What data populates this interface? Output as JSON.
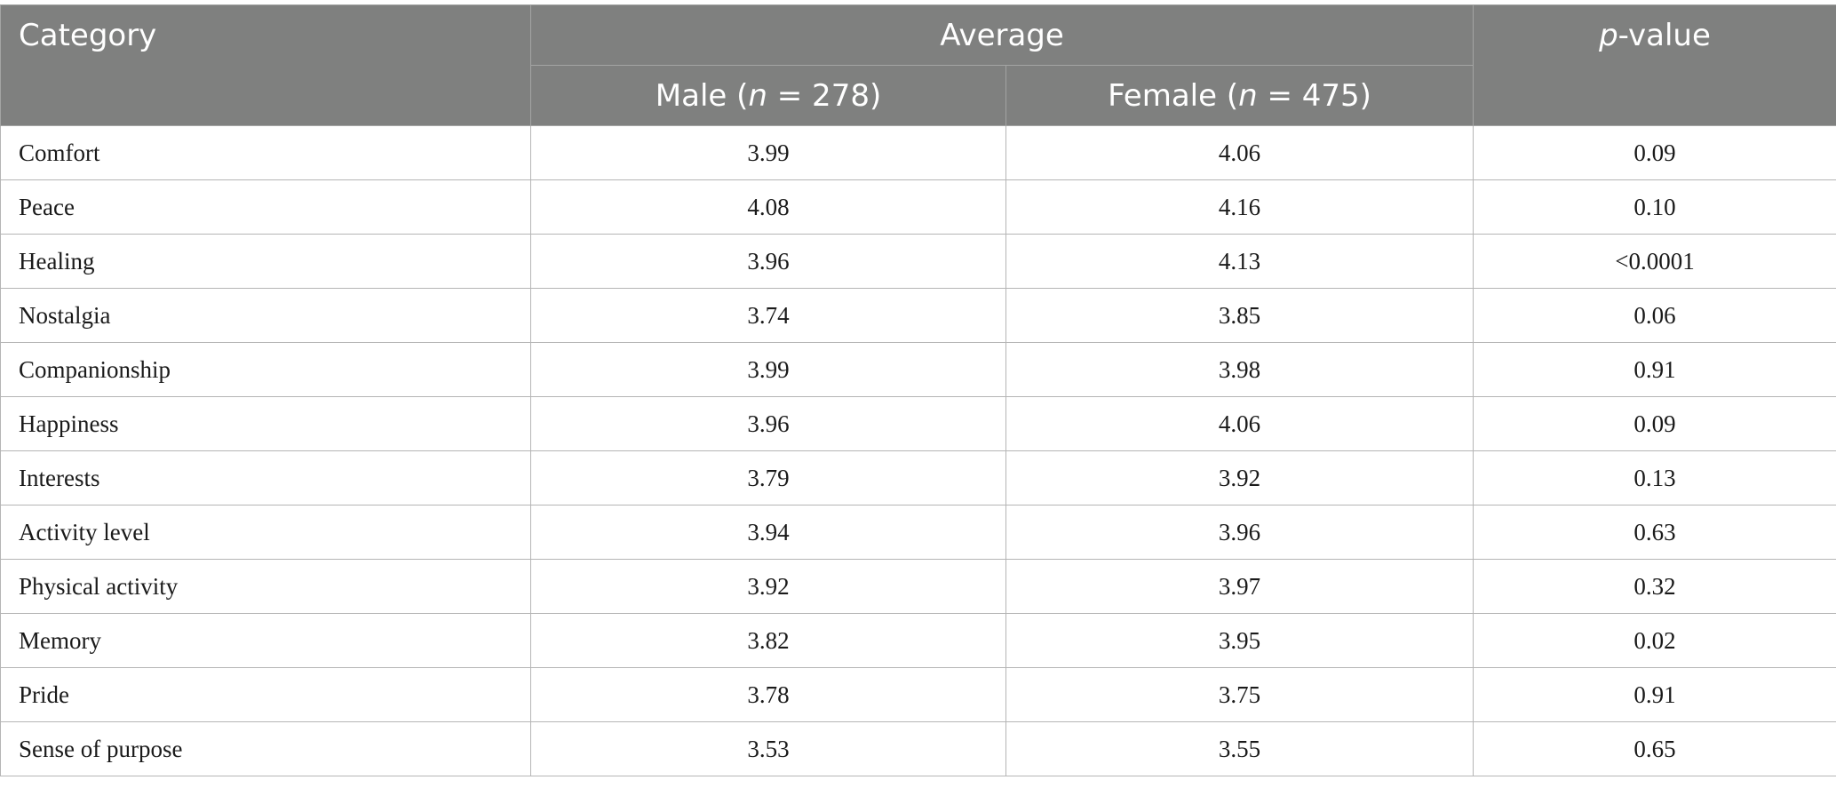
{
  "header": {
    "category": "Category",
    "average": "Average",
    "male_prefix": "Male (",
    "male_n": "n",
    "male_suffix": " = 278)",
    "female_prefix": "Female (",
    "female_n": "n",
    "female_suffix": " = 475)",
    "p_italic": "p",
    "p_suffix": "-value"
  },
  "rows": [
    {
      "category": "Comfort",
      "male": "3.99",
      "female": "4.06",
      "p": "0.09"
    },
    {
      "category": "Peace",
      "male": "4.08",
      "female": "4.16",
      "p": "0.10"
    },
    {
      "category": "Healing",
      "male": "3.96",
      "female": "4.13",
      "p": "<0.0001"
    },
    {
      "category": "Nostalgia",
      "male": "3.74",
      "female": "3.85",
      "p": "0.06"
    },
    {
      "category": "Companionship",
      "male": "3.99",
      "female": "3.98",
      "p": "0.91"
    },
    {
      "category": "Happiness",
      "male": "3.96",
      "female": "4.06",
      "p": "0.09"
    },
    {
      "category": "Interests",
      "male": "3.79",
      "female": "3.92",
      "p": "0.13"
    },
    {
      "category": "Activity level",
      "male": "3.94",
      "female": "3.96",
      "p": "0.63"
    },
    {
      "category": "Physical activity",
      "male": "3.92",
      "female": "3.97",
      "p": "0.32"
    },
    {
      "category": "Memory",
      "male": "3.82",
      "female": "3.95",
      "p": "0.02"
    },
    {
      "category": "Pride",
      "male": "3.78",
      "female": "3.75",
      "p": "0.91"
    },
    {
      "category": "Sense of purpose",
      "male": "3.53",
      "female": "3.55",
      "p": "0.65"
    }
  ]
}
